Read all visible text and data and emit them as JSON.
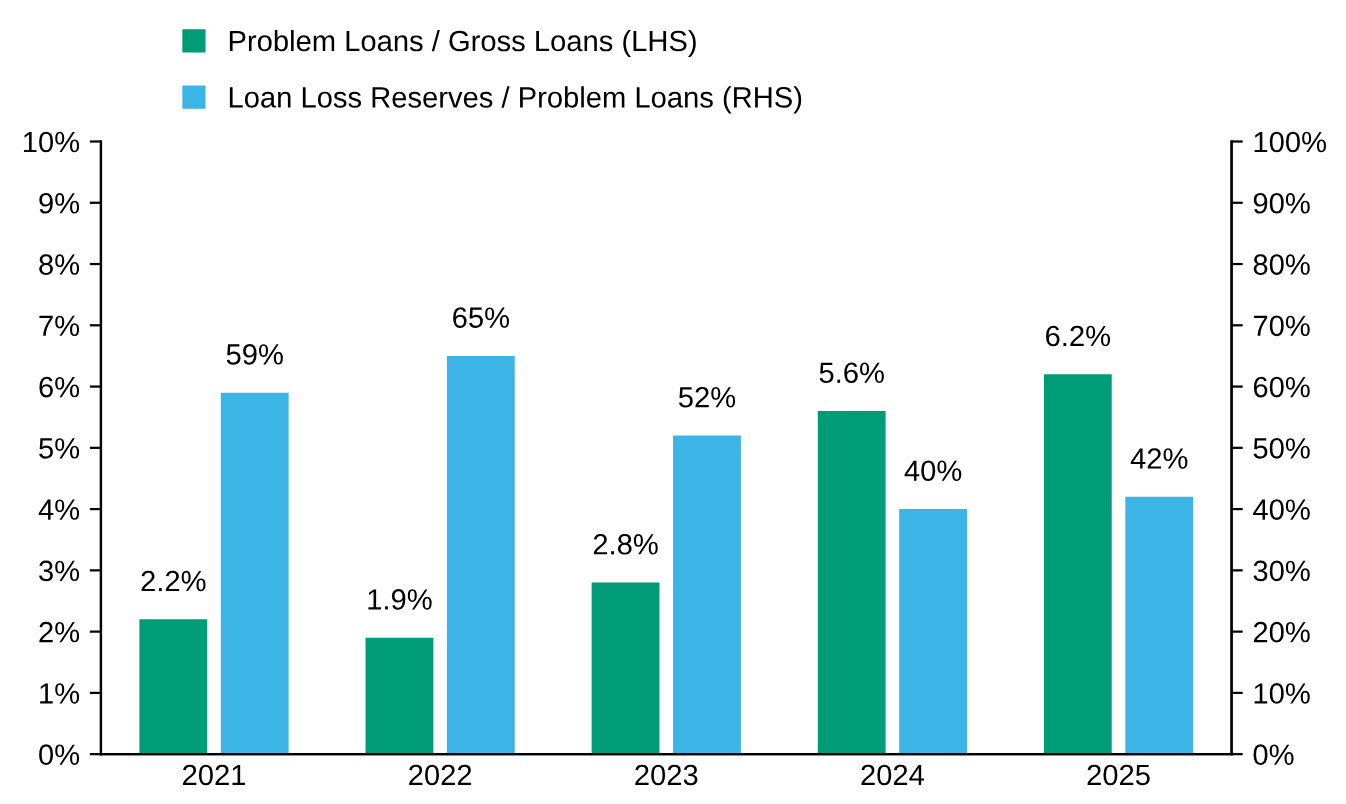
{
  "chart_data": {
    "type": "bar",
    "categories": [
      "2021",
      "2022",
      "2023",
      "2024",
      "2025"
    ],
    "series": [
      {
        "name": "Problem Loans / Gross Loans (LHS)",
        "color": "#009b77",
        "values": [
          2.2,
          1.9,
          2.8,
          5.6,
          6.2
        ],
        "value_labels": [
          "2.2%",
          "1.9%",
          "2.8%",
          "5.6%",
          "6.2%"
        ]
      },
      {
        "name": "Loan Loss Reserves / Problem Loans (RHS)",
        "color": "#3cb4e5",
        "axis": "y2",
        "values": [
          59,
          65,
          52,
          40,
          42
        ],
        "value_labels": [
          "59%",
          "65%",
          "52%",
          "40%",
          "42%"
        ]
      }
    ],
    "ylim": [
      0,
      10
    ],
    "yticks": [
      {
        "value": 0,
        "label": "0%"
      },
      {
        "value": 1,
        "label": "1%"
      },
      {
        "value": 2,
        "label": "2%"
      },
      {
        "value": 3,
        "label": "3%"
      },
      {
        "value": 4,
        "label": "4%"
      },
      {
        "value": 5,
        "label": "5%"
      },
      {
        "value": 6,
        "label": "6%"
      },
      {
        "value": 7,
        "label": "7%"
      },
      {
        "value": 8,
        "label": "8%"
      },
      {
        "value": 9,
        "label": "9%"
      },
      {
        "value": 10,
        "label": "10%"
      }
    ],
    "y2lim": [
      0,
      100
    ],
    "y2ticks": [
      {
        "value": 0,
        "label": "0%"
      },
      {
        "value": 10,
        "label": "10%"
      },
      {
        "value": 20,
        "label": "20%"
      },
      {
        "value": 30,
        "label": "30%"
      },
      {
        "value": 40,
        "label": "40%"
      },
      {
        "value": 50,
        "label": "50%"
      },
      {
        "value": 60,
        "label": "60%"
      },
      {
        "value": 70,
        "label": "70%"
      },
      {
        "value": 80,
        "label": "80%"
      },
      {
        "value": 90,
        "label": "90%"
      },
      {
        "value": 100,
        "label": "100%"
      }
    ],
    "legend": "top",
    "grid": false
  }
}
